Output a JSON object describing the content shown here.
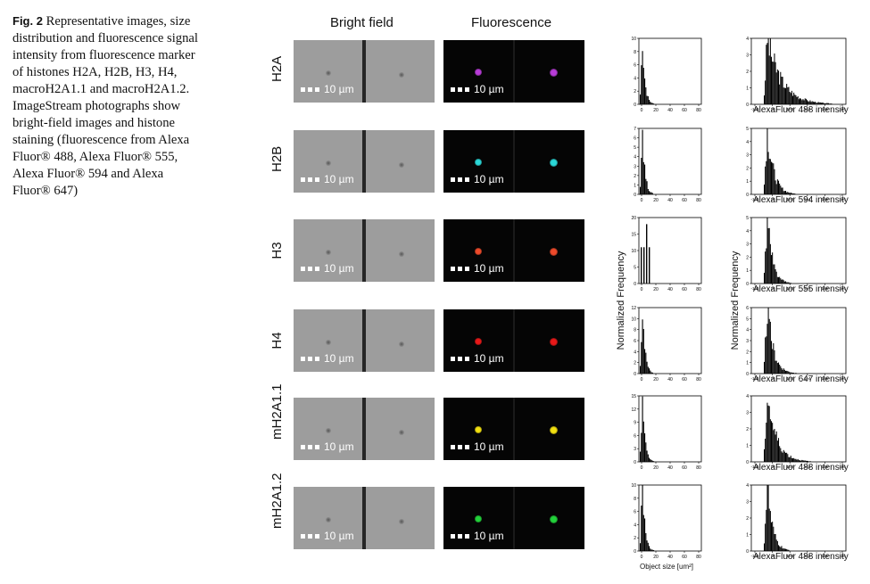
{
  "caption": {
    "label": "Fig. 2",
    "text": "Representative images, size distribution and fluorescence signal intensity from fluorescence marker of histones H2A, H2B, H3, H4, macroH2A1.1 and macroH2A1.2. ImageStream photographs show bright-field images and histone staining (fluorescence from Alexa Fluor® 488, Alexa Fluor® 555, Alexa Fluor® 594 and Alexa Fluor® 647)"
  },
  "columns": {
    "bright": "Bright field",
    "fluor": "Fluorescence"
  },
  "scale_label": "10 µm",
  "rows": [
    {
      "label": "H2A",
      "color": "#b83cd8",
      "size_ymax": 10,
      "size_ticks": [
        "10",
        "8",
        "6",
        "4",
        "2",
        "0"
      ],
      "int_ymax": 4,
      "int_ticks": [
        "4",
        "3",
        "2",
        "1",
        "0"
      ],
      "int_label": "AlexaFluor 488 intensity"
    },
    {
      "label": "H2B",
      "color": "#2ad8d8",
      "size_ymax": 7,
      "size_ticks": [
        "7",
        "6",
        "5",
        "4",
        "3",
        "2",
        "1",
        "0"
      ],
      "int_ymax": 5,
      "int_ticks": [
        "5",
        "4",
        "3",
        "2",
        "1",
        "0"
      ],
      "int_label": "AlexaFluor 594 intensity"
    },
    {
      "label": "H3",
      "color": "#ee4a2a",
      "size_ymax": 20,
      "size_ticks": [
        "20",
        "15",
        "10",
        "5",
        "0"
      ],
      "int_ymax": 5,
      "int_ticks": [
        "5",
        "4",
        "3",
        "2",
        "1",
        "0"
      ],
      "int_label": "AlexaFluor 555 intensity"
    },
    {
      "label": "H4",
      "color": "#e81818",
      "size_ymax": 12,
      "size_ticks": [
        "12",
        "10",
        "8",
        "6",
        "4",
        "2",
        "0"
      ],
      "int_ymax": 6,
      "int_ticks": [
        "6",
        "5",
        "4",
        "3",
        "2",
        "1",
        "0"
      ],
      "int_label": "AlexaFluor 647 intensity"
    },
    {
      "label": "mH2A1.1",
      "color": "#f2e010",
      "size_ymax": 15,
      "size_ticks": [
        "15",
        "12",
        "9",
        "6",
        "3",
        "0"
      ],
      "int_ymax": 4,
      "int_ticks": [
        "4",
        "3",
        "2",
        "1",
        "0"
      ],
      "int_label": "AlexaFluor 488 intensity"
    },
    {
      "label": "mH2A1.2",
      "color": "#22d23a",
      "size_ymax": 10,
      "size_ticks": [
        "10",
        "8",
        "6",
        "4",
        "2",
        "0"
      ],
      "int_ymax": 4,
      "int_ticks": [
        "4",
        "3",
        "2",
        "1",
        "0"
      ],
      "int_label": "AlexaFluor 488 intensity"
    }
  ],
  "size_xticks": [
    "0",
    "20",
    "40",
    "60",
    "80"
  ],
  "int_xticks": [
    "-1e3",
    "0",
    "1e3",
    "1e4",
    "1e5",
    "1e6"
  ],
  "size_axis_label": "Object size [um²]",
  "freq_label": "Normalized Frequency"
}
